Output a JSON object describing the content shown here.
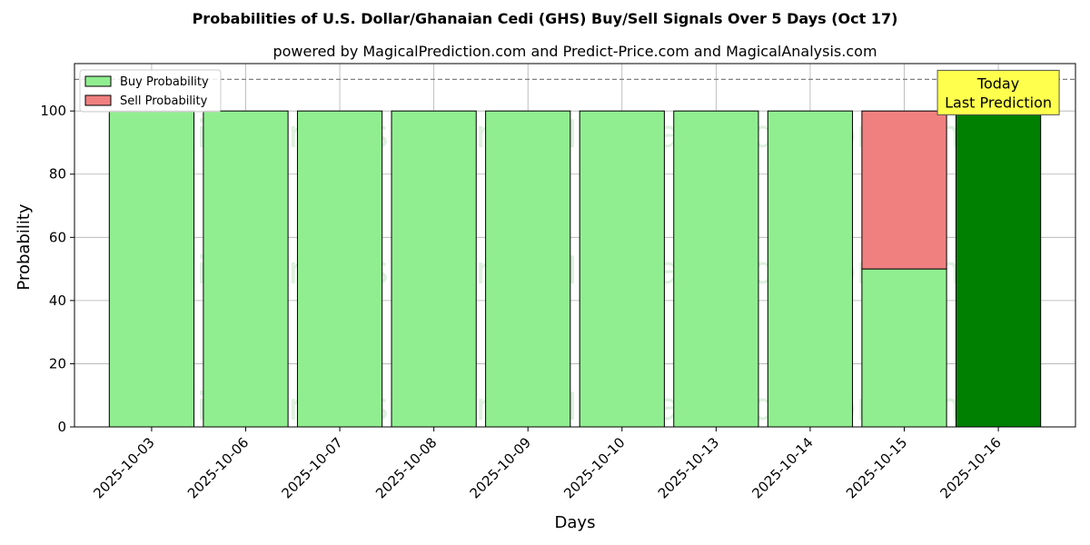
{
  "chart_data": {
    "type": "bar",
    "stacked": true,
    "title": "Probabilities of U.S. Dollar/Ghanaian Cedi (GHS) Buy/Sell Signals Over 5 Days (Oct 17)",
    "subtitle": "powered by MagicalPrediction.com and Predict-Price.com and MagicalAnalysis.com",
    "xlabel": "Days",
    "ylabel": "Probability",
    "ylim": [
      0,
      115
    ],
    "yticks": [
      0,
      20,
      40,
      60,
      80,
      100
    ],
    "grid": true,
    "legend_position": "top-left",
    "categories": [
      "2025-10-03",
      "2025-10-06",
      "2025-10-07",
      "2025-10-08",
      "2025-10-09",
      "2025-10-10",
      "2025-10-13",
      "2025-10-14",
      "2025-10-15",
      "2025-10-16"
    ],
    "series": [
      {
        "name": "Buy Probability",
        "color": "#90ee90",
        "values": [
          100,
          100,
          100,
          100,
          100,
          100,
          100,
          100,
          50,
          100
        ]
      },
      {
        "name": "Sell Probability",
        "color": "#f08080",
        "values": [
          0,
          0,
          0,
          0,
          0,
          0,
          0,
          0,
          50,
          0
        ]
      }
    ],
    "highlight": {
      "category": "2025-10-16",
      "color": "#008000"
    },
    "reference_line": {
      "y": 110,
      "style": "dashed",
      "color": "#808080"
    },
    "annotation": {
      "lines": [
        "Today",
        "Last Prediction"
      ],
      "background": "#ffff4d",
      "category": "2025-10-16",
      "y": 110
    },
    "watermarks": [
      "MagicalAnalysis.com",
      "MagicalPrediction.com"
    ]
  }
}
